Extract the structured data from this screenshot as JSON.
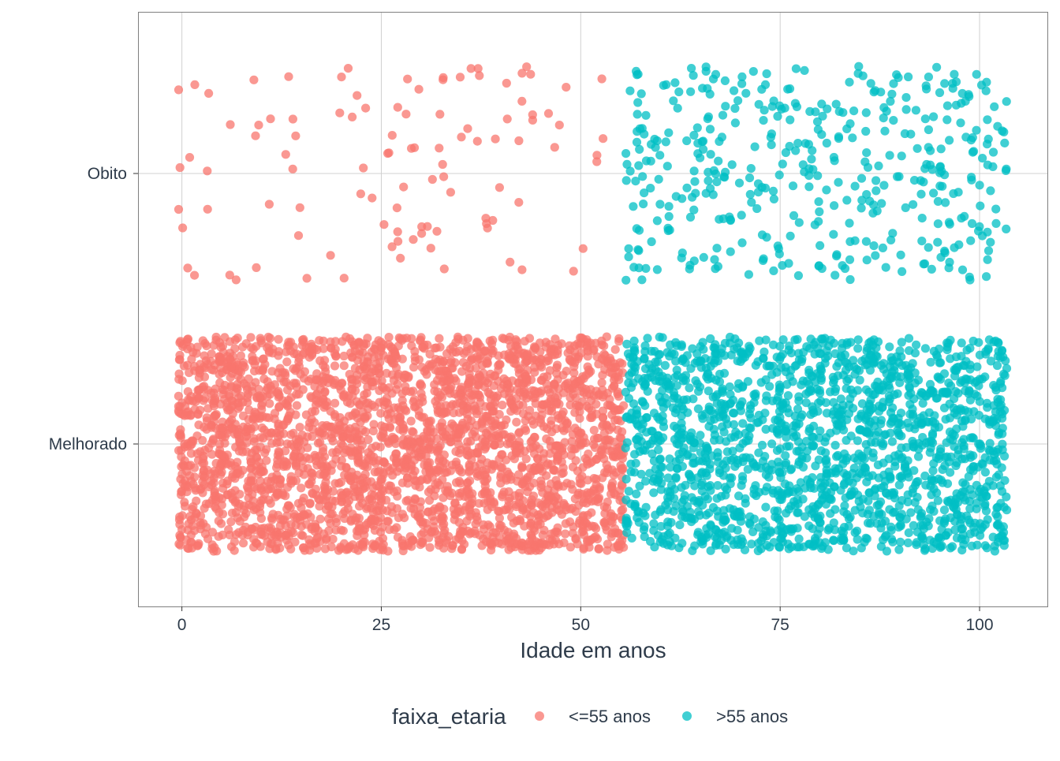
{
  "chart_data": {
    "type": "scatter",
    "style": "jitter",
    "xlabel": "Idade em anos",
    "ylabel": "",
    "xlim": [
      -5.5,
      108.5
    ],
    "x_ticks": [
      0,
      25,
      50,
      75,
      100
    ],
    "x_tick_labels": [
      "0",
      "25",
      "50",
      "75",
      "100"
    ],
    "y_categories": [
      "Melhorado",
      "Obito"
    ],
    "grid": true,
    "panel_border": true,
    "point_alpha": 0.75,
    "legend": {
      "title": "faixa_etaria",
      "placement": "bottom",
      "entries": [
        {
          "label": "<=55 anos",
          "color": "#F8766D"
        },
        {
          "label": ">55 anos",
          "color": "#00BFC4"
        }
      ]
    },
    "series": [
      {
        "label": "<=55 anos",
        "color": "#F8766D",
        "x_range": [
          0,
          55
        ],
        "counts": {
          "Melhorado": 2900,
          "Obito": 105
        }
      },
      {
        "label": ">55 anos",
        "color": "#00BFC4",
        "x_range": [
          56,
          103
        ],
        "counts": {
          "Melhorado": 1750,
          "Obito": 420
        }
      }
    ]
  }
}
